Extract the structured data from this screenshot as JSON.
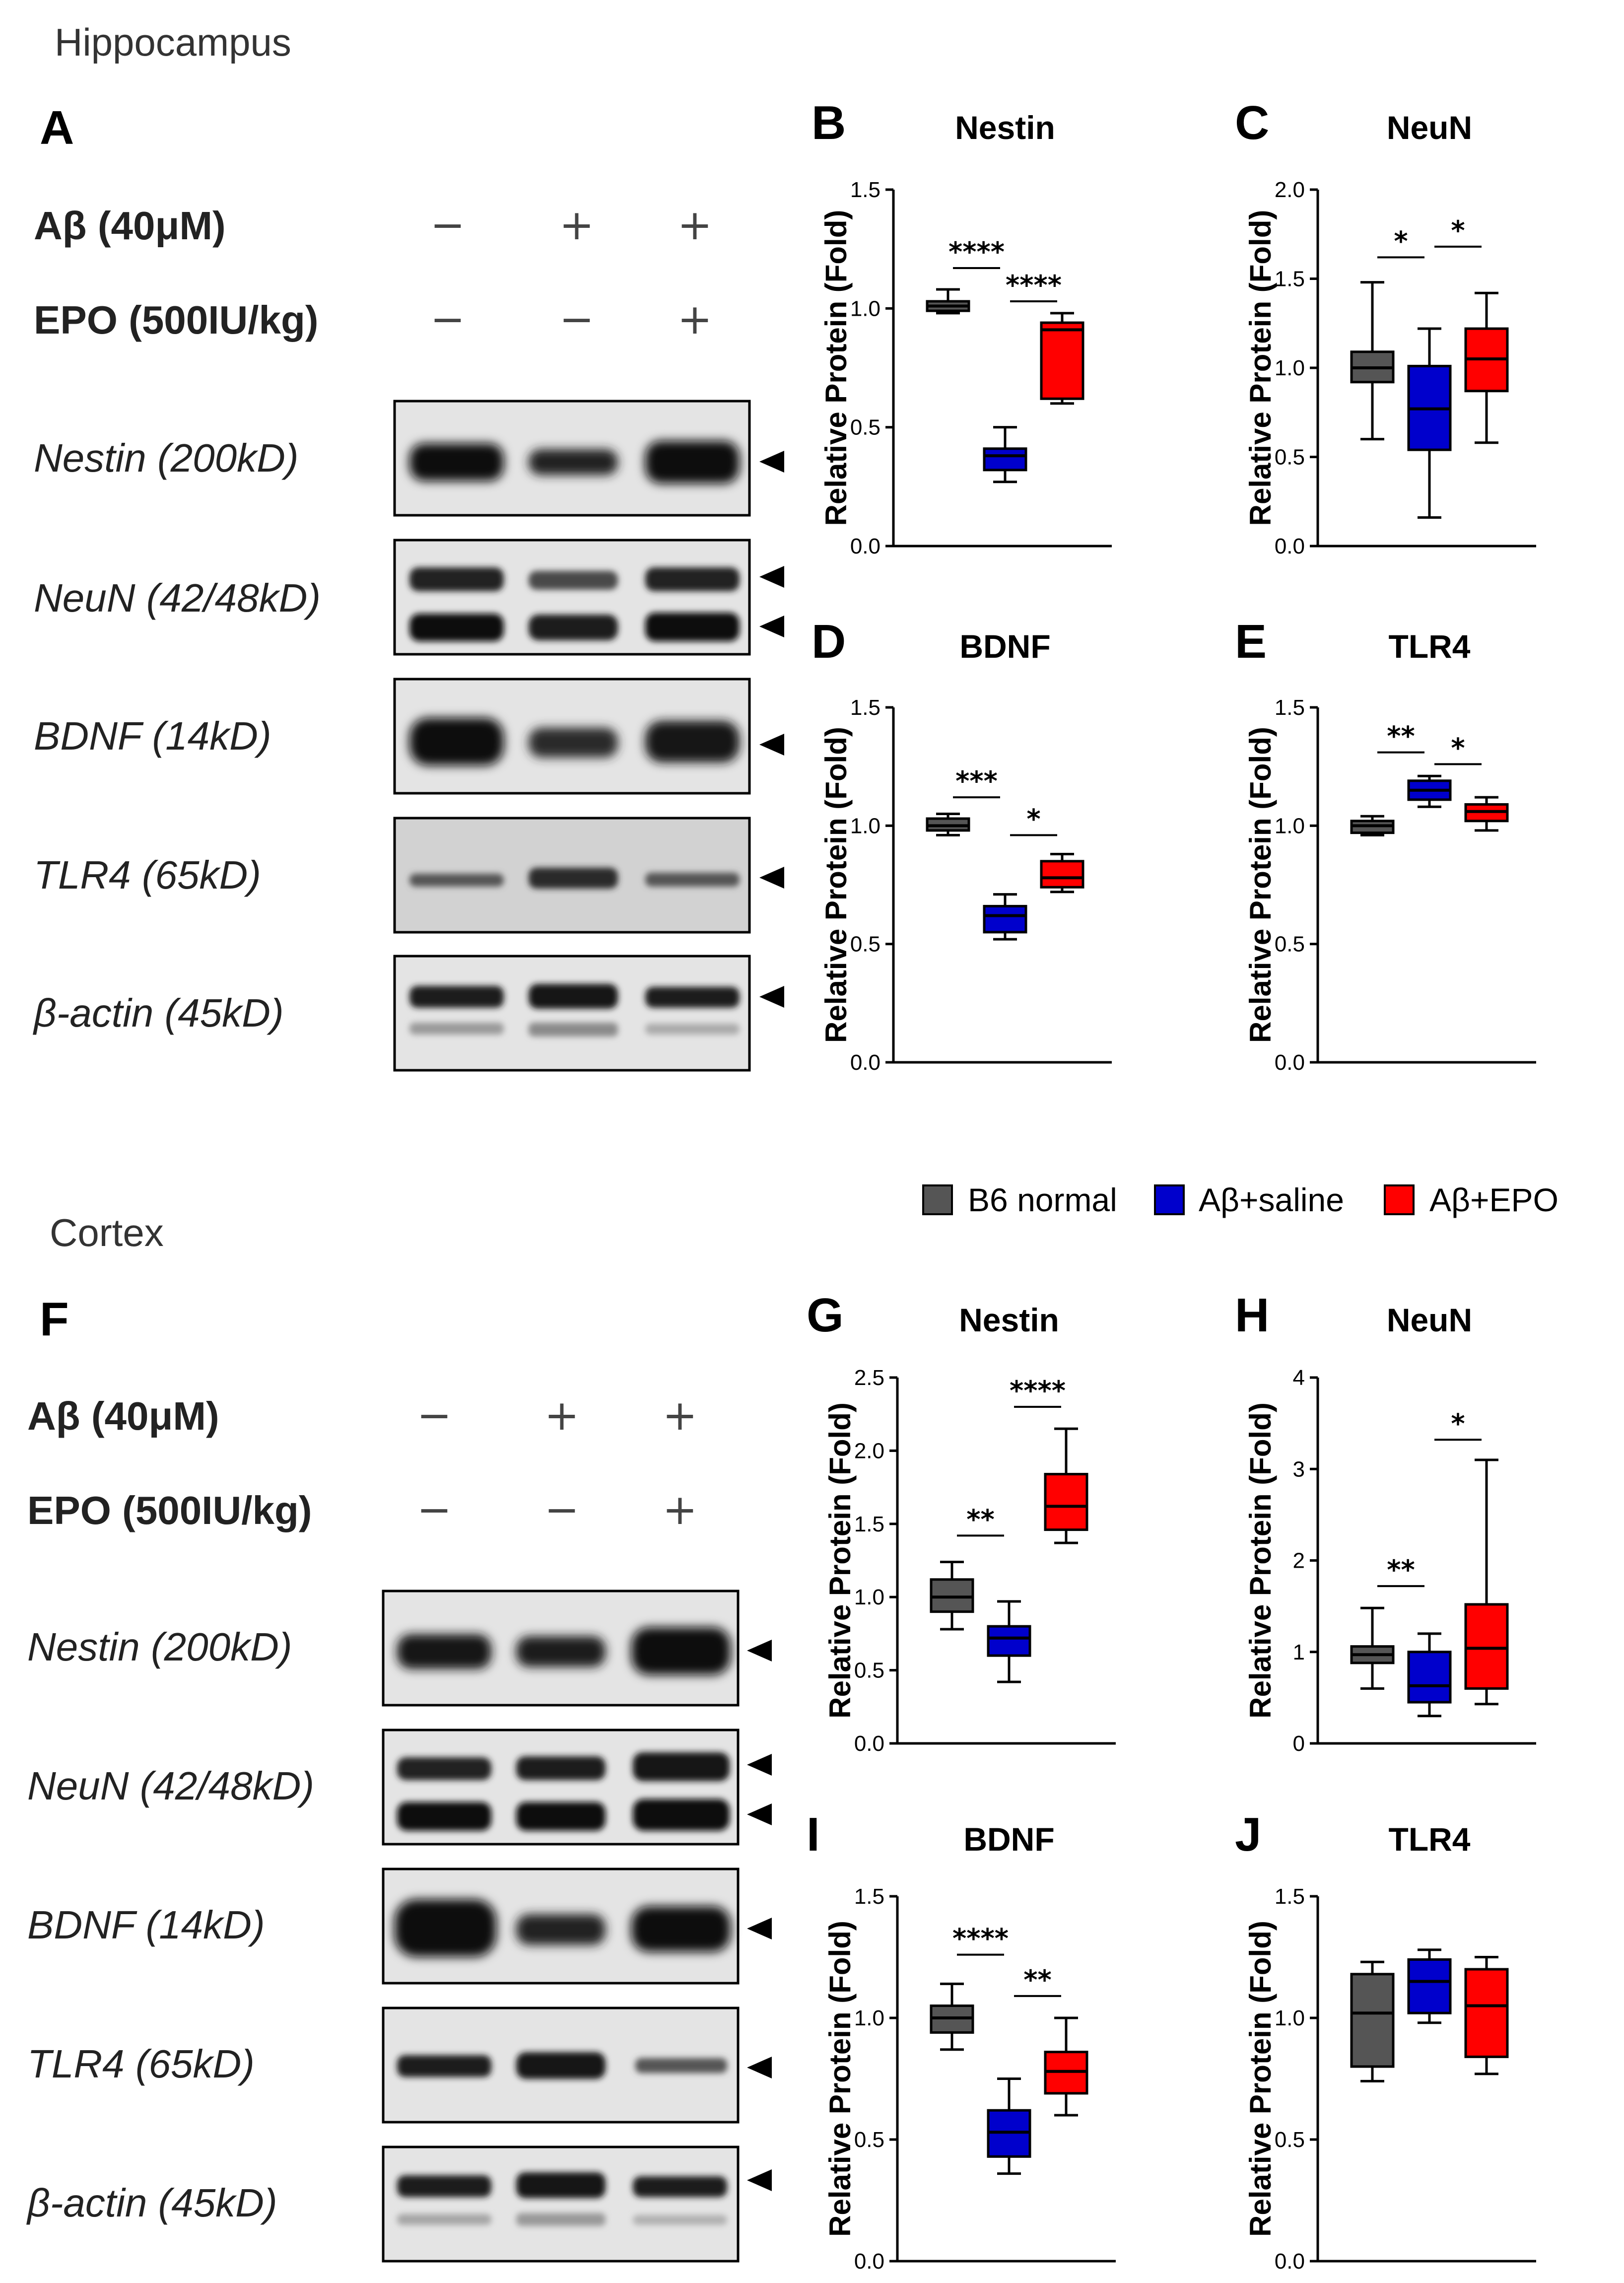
{
  "figure": {
    "sections": [
      "Hippocampus",
      "Cortex"
    ],
    "panel_letters": [
      "A",
      "F"
    ],
    "treatments": [
      {
        "label": "Aβ (40μM)",
        "signs": [
          "−",
          "+",
          "+"
        ]
      },
      {
        "label": "EPO (500IU/kg)",
        "signs": [
          "−",
          "−",
          "+"
        ]
      }
    ],
    "blots": [
      "Nestin (200kD)",
      "NeuN (42/48kD)",
      "BDNF (14kD)",
      "TLR4 (65kD)",
      "β-actin (45kD)"
    ],
    "legend": [
      {
        "name": "B6 normal",
        "color": "#555555"
      },
      {
        "name": "Aβ+saline",
        "color": "#0000CC"
      },
      {
        "name": "Aβ+EPO",
        "color": "#FF0000"
      }
    ]
  },
  "chart_data": [
    {
      "panel": "B",
      "title": "Nestin",
      "type": "box",
      "ylabel": "Relative Protein (Fold)",
      "ylim": [
        0,
        1.5
      ],
      "yticks": [
        "0.0",
        "0.5",
        "1.0",
        "1.5"
      ],
      "series": [
        {
          "name": "B6 normal",
          "min": 0.98,
          "q1": 0.99,
          "median": 1.01,
          "q3": 1.03,
          "max": 1.08
        },
        {
          "name": "Aβ+saline",
          "min": 0.27,
          "q1": 0.32,
          "median": 0.38,
          "q3": 0.41,
          "max": 0.5
        },
        {
          "name": "Aβ+EPO",
          "min": 0.6,
          "q1": 0.62,
          "median": 0.91,
          "q3": 0.94,
          "max": 0.98
        }
      ],
      "sig": [
        {
          "from": 0,
          "to": 1,
          "level": 1.17,
          "label": "****"
        },
        {
          "from": 1,
          "to": 2,
          "level": 1.03,
          "label": "****"
        }
      ]
    },
    {
      "panel": "C",
      "title": "NeuN",
      "type": "box",
      "ylabel": "Relative Protein (Fold)",
      "ylim": [
        0,
        2.0
      ],
      "yticks": [
        "0.0",
        "0.5",
        "1.0",
        "1.5",
        "2.0"
      ],
      "series": [
        {
          "name": "B6 normal",
          "min": 0.6,
          "q1": 0.92,
          "median": 1.0,
          "q3": 1.09,
          "max": 1.48
        },
        {
          "name": "Aβ+saline",
          "min": 0.16,
          "q1": 0.54,
          "median": 0.77,
          "q3": 1.01,
          "max": 1.22
        },
        {
          "name": "Aβ+EPO",
          "min": 0.58,
          "q1": 0.87,
          "median": 1.05,
          "q3": 1.22,
          "max": 1.42
        }
      ],
      "sig": [
        {
          "from": 0,
          "to": 1,
          "level": 1.62,
          "label": "*"
        },
        {
          "from": 1,
          "to": 2,
          "level": 1.68,
          "label": "*"
        }
      ]
    },
    {
      "panel": "D",
      "title": "BDNF",
      "type": "box",
      "ylabel": "Relative Protein (Fold)",
      "ylim": [
        0,
        1.5
      ],
      "yticks": [
        "0.0",
        "0.5",
        "1.0",
        "1.5"
      ],
      "series": [
        {
          "name": "B6 normal",
          "min": 0.96,
          "q1": 0.98,
          "median": 1.0,
          "q3": 1.03,
          "max": 1.05
        },
        {
          "name": "Aβ+saline",
          "min": 0.52,
          "q1": 0.55,
          "median": 0.62,
          "q3": 0.66,
          "max": 0.71
        },
        {
          "name": "Aβ+EPO",
          "min": 0.72,
          "q1": 0.74,
          "median": 0.78,
          "q3": 0.85,
          "max": 0.88
        }
      ],
      "sig": [
        {
          "from": 0,
          "to": 1,
          "level": 1.12,
          "label": "***"
        },
        {
          "from": 1,
          "to": 2,
          "level": 0.96,
          "label": "*"
        }
      ]
    },
    {
      "panel": "E",
      "title": "TLR4",
      "type": "box",
      "ylabel": "Relative Protein (Fold)",
      "ylim": [
        0,
        1.5
      ],
      "yticks": [
        "0.0",
        "0.5",
        "1.0",
        "1.5"
      ],
      "series": [
        {
          "name": "B6 normal",
          "min": 0.96,
          "q1": 0.97,
          "median": 1.0,
          "q3": 1.02,
          "max": 1.04
        },
        {
          "name": "Aβ+saline",
          "min": 1.08,
          "q1": 1.11,
          "median": 1.15,
          "q3": 1.19,
          "max": 1.21
        },
        {
          "name": "Aβ+EPO",
          "min": 0.98,
          "q1": 1.02,
          "median": 1.06,
          "q3": 1.09,
          "max": 1.12
        }
      ],
      "sig": [
        {
          "from": 0,
          "to": 1,
          "level": 1.31,
          "label": "**"
        },
        {
          "from": 1,
          "to": 2,
          "level": 1.26,
          "label": "*"
        }
      ]
    },
    {
      "panel": "G",
      "title": "Nestin",
      "type": "box",
      "ylabel": "Relative Protein (Fold)",
      "ylim": [
        0,
        2.5
      ],
      "yticks": [
        "0.0",
        "0.5",
        "1.0",
        "1.5",
        "2.0",
        "2.5"
      ],
      "series": [
        {
          "name": "B6 normal",
          "min": 0.78,
          "q1": 0.9,
          "median": 1.0,
          "q3": 1.12,
          "max": 1.24
        },
        {
          "name": "Aβ+saline",
          "min": 0.42,
          "q1": 0.6,
          "median": 0.72,
          "q3": 0.8,
          "max": 0.97
        },
        {
          "name": "Aβ+EPO",
          "min": 1.37,
          "q1": 1.46,
          "median": 1.62,
          "q3": 1.84,
          "max": 2.15
        }
      ],
      "sig": [
        {
          "from": 0,
          "to": 1,
          "level": 1.42,
          "label": "**"
        },
        {
          "from": 1,
          "to": 2,
          "level": 2.3,
          "label": "****"
        }
      ]
    },
    {
      "panel": "H",
      "title": "NeuN",
      "type": "box",
      "ylabel": "Relative Protein (Fold)",
      "ylim": [
        0,
        4
      ],
      "yticks": [
        "0",
        "1",
        "2",
        "3",
        "4"
      ],
      "series": [
        {
          "name": "B6 normal",
          "min": 0.6,
          "q1": 0.88,
          "median": 0.97,
          "q3": 1.06,
          "max": 1.48
        },
        {
          "name": "Aβ+saline",
          "min": 0.3,
          "q1": 0.45,
          "median": 0.63,
          "q3": 1.0,
          "max": 1.2
        },
        {
          "name": "Aβ+EPO",
          "min": 0.43,
          "q1": 0.6,
          "median": 1.04,
          "q3": 1.52,
          "max": 3.1
        }
      ],
      "sig": [
        {
          "from": 0,
          "to": 1,
          "level": 1.72,
          "label": "**"
        },
        {
          "from": 1,
          "to": 2,
          "level": 3.32,
          "label": "*"
        }
      ]
    },
    {
      "panel": "I",
      "title": "BDNF",
      "type": "box",
      "ylabel": "Relative Protein (Fold)",
      "ylim": [
        0,
        1.5
      ],
      "yticks": [
        "0.0",
        "0.5",
        "1.0",
        "1.5"
      ],
      "series": [
        {
          "name": "B6 normal",
          "min": 0.87,
          "q1": 0.94,
          "median": 1.0,
          "q3": 1.05,
          "max": 1.14
        },
        {
          "name": "Aβ+saline",
          "min": 0.36,
          "q1": 0.43,
          "median": 0.53,
          "q3": 0.62,
          "max": 0.75
        },
        {
          "name": "Aβ+EPO",
          "min": 0.6,
          "q1": 0.69,
          "median": 0.78,
          "q3": 0.86,
          "max": 1.0
        }
      ],
      "sig": [
        {
          "from": 0,
          "to": 1,
          "level": 1.26,
          "label": "****"
        },
        {
          "from": 1,
          "to": 2,
          "level": 1.09,
          "label": "**"
        }
      ]
    },
    {
      "panel": "J",
      "title": "TLR4",
      "type": "box",
      "ylabel": "Relative Protein (Fold)",
      "ylim": [
        0,
        1.5
      ],
      "yticks": [
        "0.0",
        "0.5",
        "1.0",
        "1.5"
      ],
      "series": [
        {
          "name": "B6 normal",
          "min": 0.74,
          "q1": 0.8,
          "median": 1.02,
          "q3": 1.18,
          "max": 1.23
        },
        {
          "name": "Aβ+saline",
          "min": 0.98,
          "q1": 1.02,
          "median": 1.15,
          "q3": 1.24,
          "max": 1.28
        },
        {
          "name": "Aβ+EPO",
          "min": 0.77,
          "q1": 0.84,
          "median": 1.05,
          "q3": 1.2,
          "max": 1.25
        }
      ],
      "sig": []
    }
  ]
}
